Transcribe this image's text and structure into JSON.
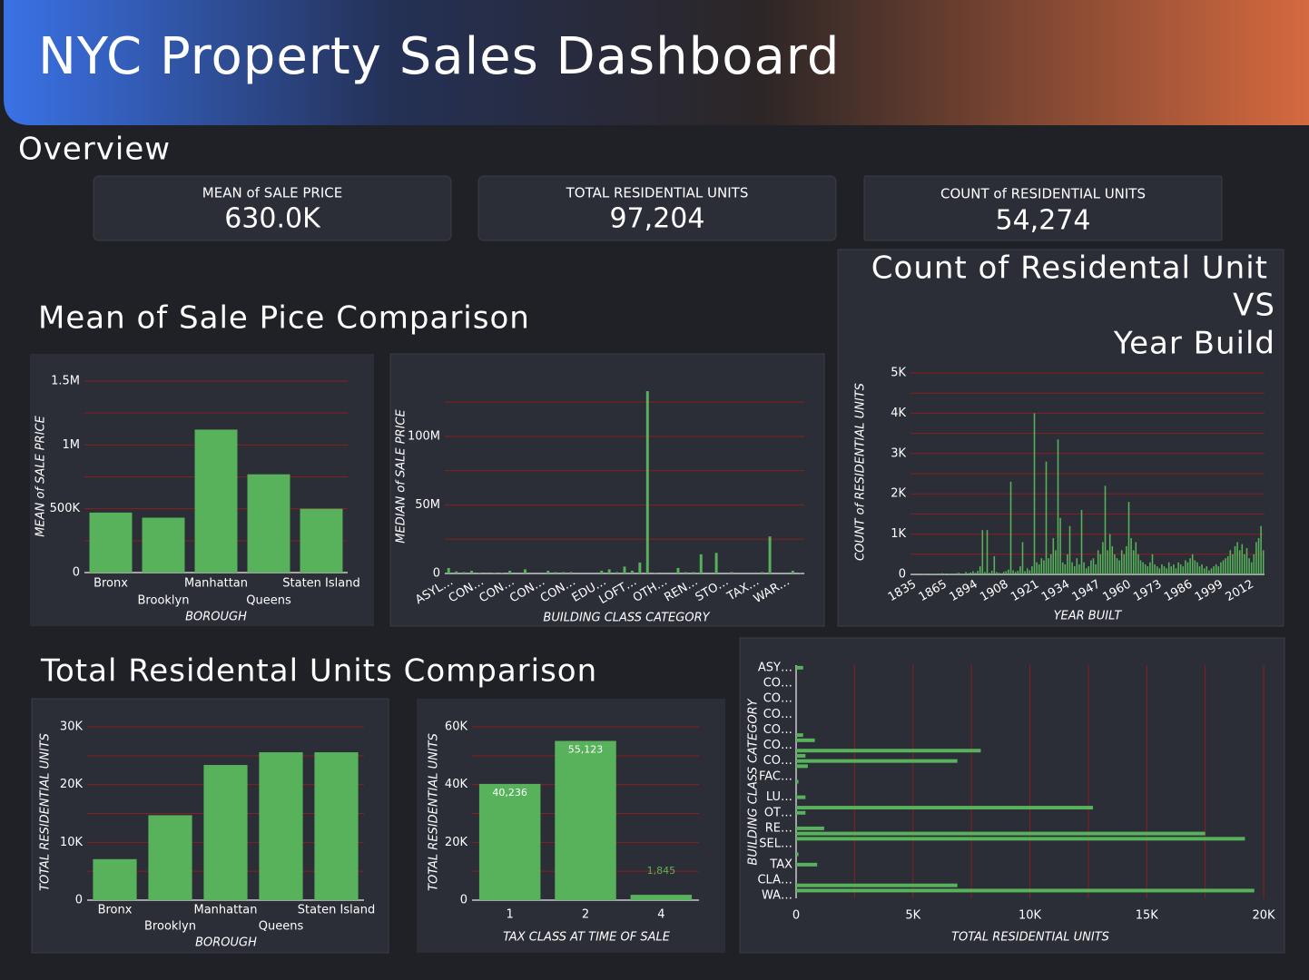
{
  "header": {
    "title": "NYC Property Sales Dashboard"
  },
  "overview": {
    "title": "Overview",
    "kpis": [
      {
        "label": "MEAN of SALE PRICE",
        "value": "630.0K"
      },
      {
        "label": "TOTAL RESIDENTIAL UNITS",
        "value": "97,204"
      },
      {
        "label": "COUNT of RESIDENTIAL UNITS",
        "value": "54,274"
      }
    ]
  },
  "sections": {
    "sale_price": "Mean of Sale Pice Comparison",
    "residential_units": "Total Residental Units Comparison"
  },
  "chart_data": [
    {
      "type": "bar",
      "x_label": "BOROUGH",
      "y_label": "MEAN of SALE PRICE",
      "color": "#57b25b",
      "grid": true,
      "grid_color": "#8b1e1e",
      "categories": [
        "Bronx",
        "Brooklyn",
        "Manhattan",
        "Queens",
        "Staten Island"
      ],
      "values": [
        470000,
        430000,
        1120000,
        770000,
        500000
      ],
      "ylim": [
        0,
        1500000
      ],
      "yticks": [
        0,
        {
          "value": 500000,
          "label": "500K"
        },
        {
          "value": 1000000,
          "label": "1M"
        },
        {
          "value": 1500000,
          "label": "1.5M"
        }
      ],
      "minor_yticks": [
        250000,
        750000,
        1250000
      ]
    },
    {
      "type": "bar",
      "x_label": "BUILDING CLASS CATEGORY",
      "y_label": "MEDIAN of SALE PRICE",
      "color": "#57b25b",
      "grid": true,
      "grid_color": "#8b1e1e",
      "categories": [
        "ASYL…",
        null,
        null,
        null,
        "CON…",
        null,
        null,
        null,
        "CON…",
        null,
        null,
        null,
        "CON…",
        null,
        null,
        null,
        "CON…",
        null,
        null,
        null,
        "EDU…",
        null,
        null,
        null,
        "LOFT…",
        null,
        null,
        null,
        "OTH…",
        null,
        null,
        null,
        "REN…",
        null,
        null,
        null,
        "STO…",
        null,
        null,
        null,
        "TAX…",
        null,
        null,
        null,
        "WAR…",
        null,
        null
      ],
      "values": [
        4000000,
        1500000,
        1000000,
        2000000,
        500000,
        0,
        300000,
        500000,
        2000000,
        0,
        3000000,
        0,
        0,
        2000000,
        1000000,
        1000000,
        1000000,
        0,
        0,
        0,
        2000000,
        3000000,
        1000000,
        5000000,
        2000000,
        8000000,
        133000000,
        500000,
        0,
        0,
        4000000,
        1000000,
        1000000,
        14000000,
        0,
        15000000,
        0,
        1000000,
        0,
        0,
        0,
        1000000,
        27000000,
        0,
        0,
        2000000,
        500000
      ],
      "ylim": [
        0,
        135000000
      ],
      "yticks": [
        0,
        {
          "value": 50000000,
          "label": "50M"
        },
        {
          "value": 100000000,
          "label": "100M"
        }
      ],
      "minor_yticks": [
        25000000,
        75000000,
        125000000
      ]
    },
    {
      "type": "bar",
      "title": [
        "Count of Residental Unit",
        "VS",
        "Year Build"
      ],
      "x_label": "YEAR BUILT",
      "y_label": "COUNT of RESIDENTIAL UNITS",
      "color": "#57b25b",
      "grid": true,
      "grid_color": "#8b1e1e",
      "categories": [
        "1835",
        null,
        null,
        null,
        null,
        null,
        null,
        null,
        null,
        null,
        null,
        null,
        null,
        "1865",
        null,
        null,
        null,
        null,
        null,
        null,
        null,
        null,
        null,
        null,
        null,
        null,
        "1894",
        null,
        null,
        null,
        null,
        null,
        null,
        null,
        null,
        null,
        null,
        null,
        null,
        "1908",
        null,
        null,
        null,
        null,
        null,
        null,
        null,
        null,
        null,
        null,
        null,
        null,
        "1921",
        null,
        null,
        null,
        null,
        null,
        null,
        null,
        null,
        null,
        null,
        null,
        null,
        "1934",
        null,
        null,
        null,
        null,
        null,
        null,
        null,
        null,
        null,
        null,
        null,
        null,
        "1947",
        null,
        null,
        null,
        null,
        null,
        null,
        null,
        null,
        null,
        null,
        null,
        null,
        "1960",
        null,
        null,
        null,
        null,
        null,
        null,
        null,
        null,
        null,
        null,
        null,
        null,
        "1973",
        null,
        null,
        null,
        null,
        null,
        null,
        null,
        null,
        null,
        null,
        null,
        null,
        "1986",
        null,
        null,
        null,
        null,
        null,
        null,
        null,
        null,
        null,
        null,
        null,
        null,
        "1999",
        null,
        null,
        null,
        null,
        null,
        null,
        null,
        null,
        null,
        null,
        null,
        null,
        "2012",
        null,
        null,
        null,
        null,
        null,
        null
      ],
      "values": [
        10,
        5,
        8,
        3,
        5,
        10,
        20,
        5,
        8,
        15,
        10,
        5,
        20,
        30,
        15,
        5,
        10,
        25,
        10,
        30,
        40,
        20,
        15,
        60,
        30,
        50,
        80,
        40,
        90,
        200,
        1100,
        60,
        1100,
        40,
        90,
        450,
        60,
        40,
        30,
        60,
        80,
        120,
        2300,
        100,
        60,
        90,
        200,
        800,
        80,
        150,
        100,
        200,
        4000,
        300,
        250,
        400,
        350,
        2800,
        400,
        500,
        900,
        600,
        3350,
        1400,
        300,
        250,
        500,
        1200,
        300,
        200,
        400,
        250,
        1600,
        300,
        150,
        200,
        350,
        400,
        250,
        600,
        500,
        800,
        2200,
        600,
        1000,
        700,
        500,
        400,
        350,
        600,
        500,
        700,
        1800,
        900,
        600,
        800,
        500,
        350,
        300,
        250,
        200,
        300,
        500,
        250,
        200,
        150,
        250,
        200,
        150,
        300,
        200,
        250,
        150,
        300,
        250,
        200,
        350,
        300,
        400,
        500,
        350,
        300,
        200,
        250,
        150,
        200,
        100,
        150,
        200,
        250,
        200,
        300,
        350,
        400,
        450,
        600,
        500,
        700,
        800,
        600,
        750,
        500,
        650,
        400,
        300,
        500,
        800,
        900,
        1200,
        600
      ],
      "ylim": [
        0,
        5000
      ],
      "yticks": [
        0,
        {
          "value": 1000,
          "label": "1K"
        },
        {
          "value": 2000,
          "label": "2K"
        },
        {
          "value": 3000,
          "label": "3K"
        },
        {
          "value": 4000,
          "label": "4K"
        },
        {
          "value": 5000,
          "label": "5K"
        }
      ],
      "minor_yticks": [
        500,
        1500,
        2500,
        3500,
        4500
      ]
    },
    {
      "type": "bar",
      "x_label": "BOROUGH",
      "y_label": "TOTAL RESIDENTIAL UNITS",
      "color": "#57b25b",
      "grid": true,
      "grid_color": "#8b1e1e",
      "categories": [
        "Bronx",
        "Brooklyn",
        "Manhattan",
        "Queens",
        "Staten Island"
      ],
      "values": [
        7100,
        14700,
        23400,
        25600,
        25600
      ],
      "ylim": [
        0,
        30000
      ],
      "yticks": [
        0,
        {
          "value": 10000,
          "label": "10K"
        },
        {
          "value": 20000,
          "label": "20K"
        },
        {
          "value": 30000,
          "label": "30K"
        }
      ],
      "minor_yticks": [
        5000,
        15000,
        25000
      ]
    },
    {
      "type": "bar",
      "x_label": "TAX CLASS AT TIME OF SALE",
      "y_label": "TOTAL RESIDENTIAL UNITS",
      "color": "#57b25b",
      "grid": true,
      "grid_color": "#8b1e1e",
      "categories": [
        "1",
        "2",
        "4"
      ],
      "values": [
        40236,
        55123,
        1845
      ],
      "value_labels": [
        "40,236",
        "55,123",
        "1,845"
      ],
      "ylim": [
        0,
        60000
      ],
      "yticks": [
        0,
        {
          "value": 20000,
          "label": "20K"
        },
        {
          "value": 40000,
          "label": "40K"
        },
        {
          "value": 60000,
          "label": "60K"
        }
      ],
      "minor_yticks": [
        10000,
        30000,
        50000
      ]
    },
    {
      "type": "barh",
      "x_label": "TOTAL RESIDENTIAL UNITS",
      "y_label": "BUILDING CLASS CATEGORY",
      "color": "#57b25b",
      "grid": true,
      "grid_color": "#8b1e1e",
      "categories": [
        "ASY…",
        null,
        null,
        "CO…",
        null,
        null,
        "CO…",
        null,
        null,
        "CO…",
        null,
        null,
        "CO…",
        null,
        null,
        "CO…",
        null,
        null,
        "CO…",
        null,
        null,
        "FAC…",
        null,
        null,
        null,
        "LU…",
        null,
        null,
        "OT…",
        null,
        null,
        "RE…",
        null,
        null,
        "SEL…",
        null,
        null,
        null,
        "TAX",
        null,
        null,
        "CLA…",
        null,
        null,
        "WA…"
      ],
      "values": [
        300,
        0,
        0,
        0,
        0,
        0,
        0,
        0,
        0,
        0,
        0,
        0,
        0,
        300,
        800,
        0,
        7900,
        400,
        6900,
        500,
        0,
        0,
        100,
        0,
        0,
        400,
        0,
        12700,
        400,
        0,
        0,
        1200,
        17500,
        19200,
        0,
        0,
        100,
        0,
        900,
        0,
        0,
        0,
        6900,
        19600,
        0
      ],
      "xlim": [
        0,
        20000
      ],
      "xticks": [
        0,
        {
          "value": 5000,
          "label": "5K"
        },
        {
          "value": 10000,
          "label": "10K"
        },
        {
          "value": 15000,
          "label": "15K"
        },
        {
          "value": 20000,
          "label": "20K"
        }
      ],
      "minor_xticks": [
        2500,
        7500,
        12500,
        17500
      ]
    }
  ]
}
